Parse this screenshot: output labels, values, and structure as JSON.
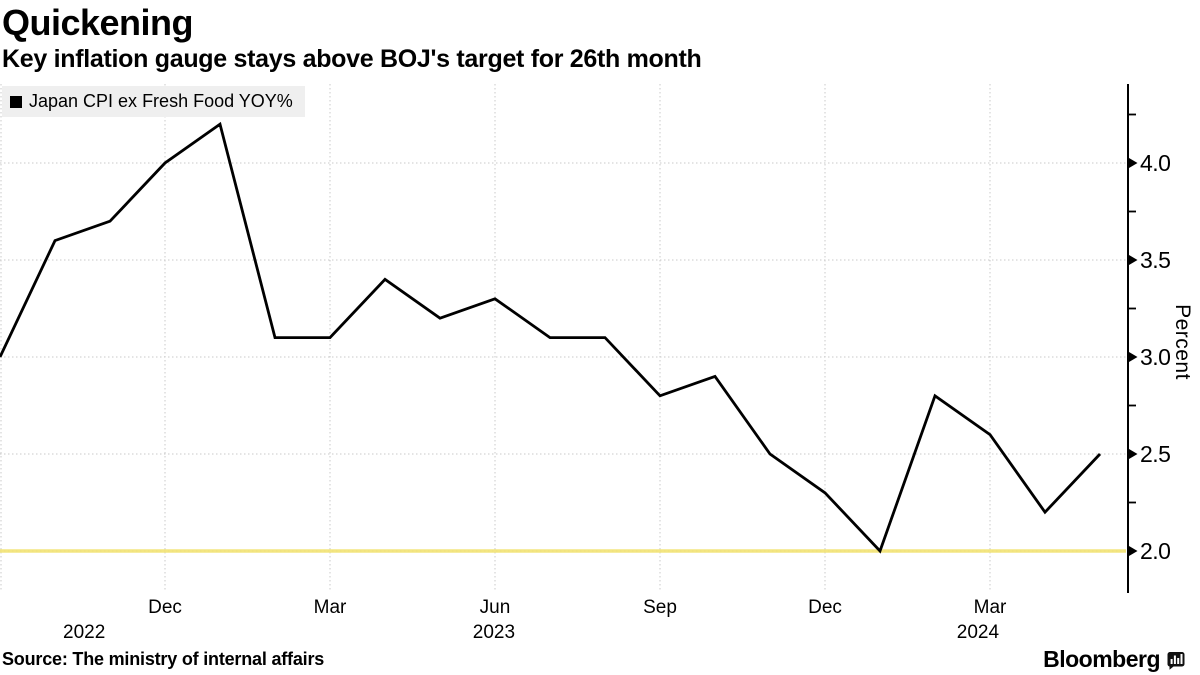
{
  "header": {
    "title": "Quickening",
    "subtitle": "Key inflation gauge stays above BOJ's target for 26th month"
  },
  "legend": {
    "label": "Japan CPI ex Fresh Food YOY%",
    "marker_color": "#000000"
  },
  "chart_data": {
    "type": "line",
    "title": "Quickening",
    "subtitle": "Key inflation gauge stays above BOJ's target for 26th month",
    "x_months": [
      "Sep 2022",
      "Oct 2022",
      "Nov 2022",
      "Dec 2022",
      "Jan 2023",
      "Feb 2023",
      "Mar 2023",
      "Apr 2023",
      "May 2023",
      "Jun 2023",
      "Jul 2023",
      "Aug 2023",
      "Sep 2023",
      "Oct 2023",
      "Nov 2023",
      "Dec 2023",
      "Jan 2024",
      "Feb 2024",
      "Mar 2024",
      "Apr 2024",
      "May 2024"
    ],
    "series": [
      {
        "name": "Japan CPI ex Fresh Food YOY%",
        "color": "#000000",
        "values": [
          3.0,
          3.6,
          3.7,
          4.0,
          4.2,
          3.1,
          3.1,
          3.4,
          3.2,
          3.3,
          3.1,
          3.1,
          2.8,
          2.9,
          2.5,
          2.3,
          2.0,
          2.8,
          2.6,
          2.2,
          2.5
        ]
      }
    ],
    "x_ticks": [
      {
        "month_index": 3,
        "label": "Dec"
      },
      {
        "month_index": 6,
        "label": "Mar"
      },
      {
        "month_index": 9,
        "label": "Jun"
      },
      {
        "month_index": 12,
        "label": "Sep"
      },
      {
        "month_index": 15,
        "label": "Dec"
      },
      {
        "month_index": 18,
        "label": "Mar"
      }
    ],
    "year_labels": [
      {
        "label": "2022",
        "month_index": 1.53
      },
      {
        "label": "2023",
        "month_index": 8.98
      },
      {
        "label": "2024",
        "month_index": 17.78
      }
    ],
    "y_axis": {
      "label": "Percent",
      "side": "right",
      "major_ticks": [
        2.0,
        2.5,
        3.0,
        3.5,
        4.0
      ],
      "minor_ticks": [
        2.25,
        2.75,
        3.25,
        3.75,
        4.25
      ],
      "ylim": [
        1.78,
        4.42
      ]
    },
    "reference_line": {
      "value": 2.0,
      "color": "#f2e272"
    },
    "grid": true,
    "grid_color": "#c9c9c9",
    "legend_position": "top-left"
  },
  "footer": {
    "source": "Source: The ministry of internal affairs",
    "brand": "Bloomberg"
  }
}
